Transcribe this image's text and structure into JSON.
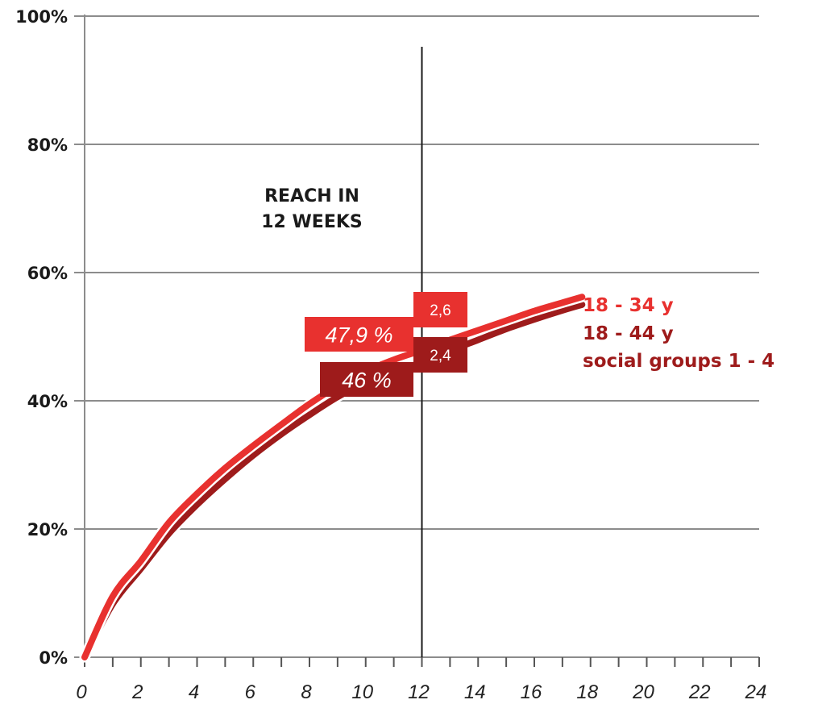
{
  "chart_data": {
    "type": "line",
    "x_ticks": [
      "0",
      "2",
      "4",
      "6",
      "8",
      "10",
      "12",
      "14",
      "16",
      "18",
      "20",
      "22",
      "24"
    ],
    "y_ticks": [
      "0%",
      "20%",
      "40%",
      "60%",
      "80%",
      "100%"
    ],
    "xlim": [
      0,
      24
    ],
    "ylim": [
      0,
      100
    ],
    "grid": "horizontal",
    "marker_line": {
      "x": 12,
      "label_lines": [
        "REACH IN",
        "12 WEEKS"
      ]
    },
    "series": [
      {
        "name": "18 - 34 y",
        "color": "#e8312f",
        "points": [
          [
            0,
            0
          ],
          [
            1,
            9.5
          ],
          [
            2,
            15
          ],
          [
            3,
            21
          ],
          [
            4,
            25.5
          ],
          [
            5,
            29.5
          ],
          [
            6,
            33
          ],
          [
            7,
            36.3
          ],
          [
            8,
            39.5
          ],
          [
            9,
            42.3
          ],
          [
            10,
            44.6
          ],
          [
            11,
            46.4
          ],
          [
            12,
            47.9
          ],
          [
            13,
            49.5
          ],
          [
            14,
            51
          ],
          [
            15,
            52.5
          ],
          [
            16,
            54
          ],
          [
            17,
            55.3
          ],
          [
            17.7,
            56.2
          ]
        ],
        "value_label": "47,9 %",
        "freq_label": "2,6"
      },
      {
        "name": "18 - 44 y\nsocial groups 1 - 4",
        "color": "#9e1b1b",
        "points": [
          [
            0,
            0
          ],
          [
            1,
            8.3
          ],
          [
            2,
            13.8
          ],
          [
            3,
            19.3
          ],
          [
            4,
            23.8
          ],
          [
            5,
            27.8
          ],
          [
            6,
            31.5
          ],
          [
            7,
            34.8
          ],
          [
            8,
            37.8
          ],
          [
            9,
            40.6
          ],
          [
            10,
            42.8
          ],
          [
            11,
            44.5
          ],
          [
            12,
            46
          ],
          [
            13,
            47.8
          ],
          [
            14,
            49.5
          ],
          [
            15,
            51.2
          ],
          [
            16,
            52.7
          ],
          [
            17,
            54.1
          ],
          [
            17.7,
            55
          ]
        ],
        "value_label": "46 %",
        "freq_label": "2,4"
      }
    ],
    "legend": {
      "entries": [
        {
          "lines": [
            "18 - 34 y"
          ],
          "color": "#e8312f"
        },
        {
          "lines": [
            "18 - 44 y",
            "social groups 1 - 4"
          ],
          "color": "#9e1b1b"
        }
      ],
      "placement": "right of line ends"
    }
  }
}
